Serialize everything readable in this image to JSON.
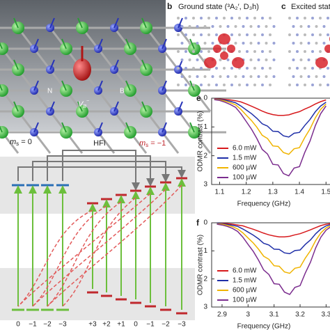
{
  "chart_data": [
    {
      "type": "line",
      "panel": "e",
      "xlabel": "Frequency (GHz)",
      "ylabel": "ODMR contrast (%)",
      "x": [
        1.08,
        1.1,
        1.12,
        1.14,
        1.16,
        1.18,
        1.2,
        1.22,
        1.24,
        1.26,
        1.28,
        1.3,
        1.32,
        1.34,
        1.36,
        1.38,
        1.4,
        1.42,
        1.44,
        1.46,
        1.48,
        1.5
      ],
      "xlim": [
        1.07,
        1.515
      ],
      "xticks": [
        1.1,
        1.2,
        1.3,
        1.4,
        1.5
      ],
      "ylim": [
        0,
        3
      ],
      "yticks": [
        0,
        1,
        2,
        3
      ],
      "y_inverted": true,
      "legend": "lower left",
      "series": [
        {
          "name": "6.0 mW",
          "color": "#d7191c",
          "values": [
            0.02,
            0.03,
            0.04,
            0.06,
            0.09,
            0.13,
            0.2,
            0.28,
            0.36,
            0.45,
            0.52,
            0.57,
            0.6,
            0.6,
            0.58,
            0.52,
            0.47,
            0.38,
            0.3,
            0.2,
            0.12,
            0.06
          ]
        },
        {
          "name": "1.5 mW",
          "color": "#1f2fa8",
          "values": [
            0.03,
            0.04,
            0.07,
            0.11,
            0.16,
            0.27,
            0.41,
            0.54,
            0.7,
            0.89,
            0.97,
            1.15,
            1.16,
            1.31,
            1.35,
            1.22,
            1.19,
            0.95,
            0.74,
            0.47,
            0.27,
            0.14
          ]
        },
        {
          "name": "600 µW",
          "color": "#f0b400",
          "values": [
            0.04,
            0.06,
            0.1,
            0.16,
            0.23,
            0.39,
            0.59,
            0.78,
            1.01,
            1.29,
            1.4,
            1.66,
            1.68,
            1.89,
            1.95,
            1.76,
            1.72,
            1.37,
            1.07,
            0.68,
            0.39,
            0.2
          ]
        },
        {
          "name": "100 µW",
          "color": "#7b2d8e",
          "values": [
            0.05,
            0.08,
            0.14,
            0.22,
            0.32,
            0.54,
            0.81,
            1.08,
            1.4,
            1.78,
            1.94,
            2.3,
            2.32,
            2.62,
            2.7,
            2.43,
            2.38,
            1.89,
            1.49,
            0.95,
            0.54,
            0.27
          ]
        }
      ]
    },
    {
      "type": "line",
      "panel": "f",
      "xlabel": "Frequency (GHz)",
      "ylabel": "ODMR contrast (%)",
      "x": [
        2.88,
        2.9,
        2.92,
        2.94,
        2.96,
        2.98,
        3.0,
        3.02,
        3.04,
        3.06,
        3.08,
        3.1,
        3.12,
        3.14,
        3.16,
        3.18,
        3.2,
        3.22,
        3.24,
        3.26,
        3.28,
        3.3,
        3.32
      ],
      "xlim": [
        2.86,
        3.315
      ],
      "xticks": [
        2.9,
        3.0,
        3.1,
        3.2,
        3.3
      ],
      "ylim": [
        0,
        3
      ],
      "yticks": [
        0,
        1,
        2,
        3
      ],
      "y_inverted": true,
      "legend": "lower left",
      "series": [
        {
          "name": "6.0 mW",
          "color": "#d7191c",
          "values": [
            0.02,
            0.02,
            0.03,
            0.05,
            0.08,
            0.11,
            0.17,
            0.23,
            0.3,
            0.37,
            0.43,
            0.47,
            0.5,
            0.5,
            0.48,
            0.43,
            0.39,
            0.32,
            0.25,
            0.17,
            0.1,
            0.05,
            0.03
          ]
        },
        {
          "name": "1.5 mW",
          "color": "#1f2fa8",
          "values": [
            0.02,
            0.03,
            0.06,
            0.09,
            0.13,
            0.22,
            0.33,
            0.44,
            0.57,
            0.73,
            0.79,
            0.94,
            0.95,
            1.07,
            1.1,
            0.99,
            0.97,
            0.77,
            0.61,
            0.39,
            0.22,
            0.11,
            0.06
          ]
        },
        {
          "name": "600 µW",
          "color": "#f0b400",
          "values": [
            0.04,
            0.05,
            0.09,
            0.14,
            0.22,
            0.36,
            0.54,
            0.72,
            0.94,
            1.19,
            1.3,
            1.53,
            1.55,
            1.75,
            1.8,
            1.62,
            1.58,
            1.26,
            0.99,
            0.63,
            0.36,
            0.18,
            0.09
          ]
        },
        {
          "name": "100 µW",
          "color": "#7b2d8e",
          "values": [
            0.05,
            0.08,
            0.13,
            0.2,
            0.31,
            0.51,
            0.77,
            1.02,
            1.33,
            1.68,
            1.84,
            2.17,
            2.19,
            2.47,
            2.55,
            2.3,
            2.24,
            1.79,
            1.4,
            0.89,
            0.51,
            0.26,
            0.13
          ]
        }
      ]
    }
  ],
  "panels": {
    "b": {
      "letter": "b",
      "title": "Ground state (³A₂′, D₃h)"
    },
    "c": {
      "letter": "c",
      "title": "Excited state ("
    }
  },
  "lattice": {
    "n_label": "N",
    "b_label": "B",
    "vacancy": {
      "main": "V",
      "sub": "B",
      "sup": "−"
    }
  },
  "diagram": {
    "left_label": {
      "symbol": "m",
      "sub": "s",
      "rest": " = 0"
    },
    "hfi": "HFI",
    "right_label": {
      "symbol": "m",
      "sub": "s",
      "rest": " = −1"
    },
    "left_levels": [
      "0",
      "−1",
      "−2",
      "−3"
    ],
    "right_levels": [
      "+3",
      "+2",
      "+1",
      "0",
      "−1",
      "−2",
      "−3"
    ]
  }
}
